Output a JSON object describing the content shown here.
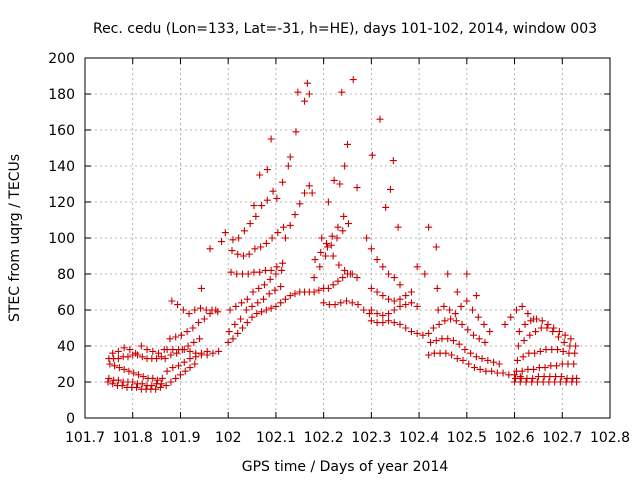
{
  "chart_data": {
    "type": "scatter",
    "title": "Rec. cedu (Lon=133, Lat=-31, h=HE), days 101-102, 2014, window 003",
    "xlabel": "GPS time / Days of year 2014",
    "ylabel": "STEC from uqrg / TECUs",
    "xlim": [
      101.7,
      102.8
    ],
    "ylim": [
      0,
      200
    ],
    "xticks": [
      101.7,
      101.8,
      101.9,
      102.0,
      102.1,
      102.2,
      102.3,
      102.4,
      102.5,
      102.6,
      102.7,
      102.8
    ],
    "xtick_labels": [
      "101.7",
      "101.8",
      "101.9",
      "102",
      "102.1",
      "102.2",
      "102.3",
      "102.4",
      "102.5",
      "102.6",
      "102.7",
      "102.8"
    ],
    "yticks": [
      0,
      20,
      40,
      60,
      80,
      100,
      120,
      140,
      160,
      180,
      200
    ],
    "ytick_labels": [
      "0",
      "20",
      "40",
      "60",
      "80",
      "100",
      "120",
      "140",
      "160",
      "180",
      "200"
    ],
    "grid": true,
    "legend": "none",
    "marker": "plus",
    "color": "#cc0000",
    "points": [
      [
        101.748,
        20
      ],
      [
        101.758,
        19
      ],
      [
        101.768,
        18
      ],
      [
        101.778,
        18
      ],
      [
        101.788,
        17
      ],
      [
        101.798,
        17
      ],
      [
        101.808,
        17
      ],
      [
        101.818,
        16
      ],
      [
        101.828,
        16
      ],
      [
        101.838,
        16
      ],
      [
        101.848,
        16
      ],
      [
        101.858,
        17
      ],
      [
        101.75,
        22
      ],
      [
        101.76,
        21
      ],
      [
        101.77,
        21
      ],
      [
        101.78,
        20
      ],
      [
        101.79,
        20
      ],
      [
        101.8,
        20
      ],
      [
        101.81,
        19
      ],
      [
        101.82,
        19
      ],
      [
        101.83,
        18
      ],
      [
        101.84,
        18
      ],
      [
        101.85,
        19
      ],
      [
        101.86,
        19
      ],
      [
        101.752,
        30
      ],
      [
        101.762,
        29
      ],
      [
        101.772,
        28
      ],
      [
        101.782,
        27
      ],
      [
        101.792,
        26
      ],
      [
        101.802,
        25
      ],
      [
        101.812,
        24
      ],
      [
        101.822,
        23
      ],
      [
        101.832,
        22
      ],
      [
        101.842,
        22
      ],
      [
        101.852,
        21
      ],
      [
        101.862,
        22
      ],
      [
        101.75,
        33
      ],
      [
        101.76,
        33
      ],
      [
        101.77,
        33
      ],
      [
        101.78,
        34
      ],
      [
        101.79,
        34
      ],
      [
        101.8,
        35
      ],
      [
        101.81,
        35
      ],
      [
        101.82,
        34
      ],
      [
        101.83,
        33
      ],
      [
        101.84,
        33
      ],
      [
        101.85,
        33
      ],
      [
        101.86,
        34
      ],
      [
        101.758,
        36
      ],
      [
        101.77,
        37
      ],
      [
        101.782,
        39
      ],
      [
        101.794,
        38
      ],
      [
        101.806,
        36
      ],
      [
        101.818,
        40
      ],
      [
        101.83,
        38
      ],
      [
        101.842,
        37
      ],
      [
        101.854,
        36
      ],
      [
        101.866,
        38
      ],
      [
        101.87,
        18
      ],
      [
        101.88,
        20
      ],
      [
        101.89,
        22
      ],
      [
        101.9,
        24
      ],
      [
        101.91,
        26
      ],
      [
        101.92,
        28
      ],
      [
        101.93,
        30
      ],
      [
        101.872,
        26
      ],
      [
        101.884,
        28
      ],
      [
        101.896,
        29
      ],
      [
        101.908,
        31
      ],
      [
        101.92,
        33
      ],
      [
        101.932,
        34
      ],
      [
        101.944,
        36
      ],
      [
        101.956,
        37
      ],
      [
        101.868,
        33
      ],
      [
        101.88,
        35
      ],
      [
        101.892,
        36
      ],
      [
        101.904,
        38
      ],
      [
        101.916,
        40
      ],
      [
        101.928,
        42
      ],
      [
        101.94,
        44
      ],
      [
        101.872,
        38
      ],
      [
        101.884,
        38
      ],
      [
        101.896,
        38
      ],
      [
        101.908,
        38
      ],
      [
        101.92,
        37
      ],
      [
        101.932,
        36
      ],
      [
        101.944,
        35
      ],
      [
        101.956,
        35
      ],
      [
        101.968,
        36
      ],
      [
        101.98,
        37
      ],
      [
        101.878,
        44
      ],
      [
        101.89,
        45
      ],
      [
        101.902,
        46
      ],
      [
        101.914,
        48
      ],
      [
        101.926,
        50
      ],
      [
        101.938,
        53
      ],
      [
        101.95,
        55
      ],
      [
        101.962,
        58
      ],
      [
        101.974,
        60
      ],
      [
        101.882,
        65
      ],
      [
        101.894,
        63
      ],
      [
        101.906,
        60
      ],
      [
        101.918,
        58
      ],
      [
        101.93,
        60
      ],
      [
        101.942,
        61
      ],
      [
        101.954,
        60
      ],
      [
        101.966,
        60
      ],
      [
        101.978,
        59
      ],
      [
        101.944,
        72
      ],
      [
        101.962,
        94
      ],
      [
        101.986,
        98
      ],
      [
        101.994,
        103
      ],
      [
        102.0,
        42
      ],
      [
        102.01,
        44
      ],
      [
        102.02,
        47
      ],
      [
        102.03,
        50
      ],
      [
        102.04,
        53
      ],
      [
        102.05,
        56
      ],
      [
        102.06,
        58
      ],
      [
        102.07,
        59
      ],
      [
        102.08,
        60
      ],
      [
        102.09,
        61
      ],
      [
        102.1,
        62
      ],
      [
        102.11,
        64
      ],
      [
        102.12,
        66
      ],
      [
        102.13,
        68
      ],
      [
        102.14,
        69
      ],
      [
        102.15,
        70
      ],
      [
        102.16,
        70
      ],
      [
        102.17,
        70
      ],
      [
        102.002,
        48
      ],
      [
        102.014,
        52
      ],
      [
        102.026,
        55
      ],
      [
        102.038,
        60
      ],
      [
        102.05,
        62
      ],
      [
        102.062,
        64
      ],
      [
        102.074,
        66
      ],
      [
        102.086,
        69
      ],
      [
        102.098,
        71
      ],
      [
        102.11,
        73
      ],
      [
        102.004,
        60
      ],
      [
        102.016,
        62
      ],
      [
        102.028,
        64
      ],
      [
        102.04,
        66
      ],
      [
        102.052,
        70
      ],
      [
        102.064,
        72
      ],
      [
        102.076,
        74
      ],
      [
        102.088,
        77
      ],
      [
        102.1,
        80
      ],
      [
        102.112,
        82
      ],
      [
        102.006,
        81
      ],
      [
        102.018,
        80
      ],
      [
        102.03,
        80
      ],
      [
        102.042,
        80
      ],
      [
        102.054,
        81
      ],
      [
        102.066,
        81
      ],
      [
        102.078,
        82
      ],
      [
        102.09,
        82
      ],
      [
        102.102,
        84
      ],
      [
        102.114,
        86
      ],
      [
        102.008,
        93
      ],
      [
        102.02,
        91
      ],
      [
        102.032,
        90
      ],
      [
        102.044,
        91
      ],
      [
        102.056,
        94
      ],
      [
        102.068,
        95
      ],
      [
        102.08,
        97
      ],
      [
        102.092,
        100
      ],
      [
        102.104,
        103
      ],
      [
        102.116,
        106
      ],
      [
        102.01,
        99
      ],
      [
        102.022,
        100
      ],
      [
        102.034,
        104
      ],
      [
        102.046,
        108
      ],
      [
        102.058,
        112
      ],
      [
        102.07,
        118
      ],
      [
        102.082,
        121
      ],
      [
        102.094,
        126
      ],
      [
        102.054,
        118
      ],
      [
        102.066,
        135
      ],
      [
        102.082,
        138
      ],
      [
        102.09,
        155
      ],
      [
        102.102,
        122
      ],
      [
        102.114,
        131
      ],
      [
        102.126,
        140
      ],
      [
        102.13,
        145
      ],
      [
        102.142,
        159
      ],
      [
        102.146,
        181
      ],
      [
        102.16,
        176
      ],
      [
        102.166,
        186
      ],
      [
        102.17,
        180
      ],
      [
        102.12,
        100
      ],
      [
        102.13,
        107
      ],
      [
        102.14,
        113
      ],
      [
        102.15,
        119
      ],
      [
        102.16,
        125
      ],
      [
        102.17,
        129
      ],
      [
        102.176,
        125
      ],
      [
        102.18,
        70
      ],
      [
        102.19,
        71
      ],
      [
        102.2,
        72
      ],
      [
        102.21,
        72
      ],
      [
        102.22,
        74
      ],
      [
        102.23,
        76
      ],
      [
        102.24,
        78
      ],
      [
        102.25,
        80
      ],
      [
        102.26,
        80
      ],
      [
        102.27,
        78
      ],
      [
        102.18,
        78
      ],
      [
        102.192,
        84
      ],
      [
        102.204,
        90
      ],
      [
        102.216,
        96
      ],
      [
        102.228,
        100
      ],
      [
        102.24,
        104
      ],
      [
        102.252,
        108
      ],
      [
        102.182,
        88
      ],
      [
        102.194,
        92
      ],
      [
        102.206,
        97
      ],
      [
        102.218,
        101
      ],
      [
        102.23,
        106
      ],
      [
        102.242,
        112
      ],
      [
        102.196,
        100
      ],
      [
        102.208,
        95
      ],
      [
        102.22,
        90
      ],
      [
        102.232,
        85
      ],
      [
        102.244,
        82
      ],
      [
        102.256,
        80
      ],
      [
        102.2,
        64
      ],
      [
        102.212,
        63
      ],
      [
        102.224,
        63
      ],
      [
        102.236,
        64
      ],
      [
        102.248,
        65
      ],
      [
        102.26,
        64
      ],
      [
        102.272,
        63
      ],
      [
        102.284,
        60
      ],
      [
        102.296,
        58
      ],
      [
        102.21,
        120
      ],
      [
        102.222,
        132
      ],
      [
        102.234,
        130
      ],
      [
        102.244,
        140
      ],
      [
        102.238,
        181
      ],
      [
        102.25,
        152
      ],
      [
        102.262,
        188
      ],
      [
        102.27,
        128
      ],
      [
        102.3,
        54
      ],
      [
        102.312,
        53
      ],
      [
        102.324,
        53
      ],
      [
        102.336,
        54
      ],
      [
        102.348,
        53
      ],
      [
        102.36,
        52
      ],
      [
        102.372,
        50
      ],
      [
        102.384,
        48
      ],
      [
        102.396,
        47
      ],
      [
        102.408,
        46
      ],
      [
        102.42,
        47
      ],
      [
        102.3,
        60
      ],
      [
        102.312,
        58
      ],
      [
        102.324,
        57
      ],
      [
        102.336,
        58
      ],
      [
        102.348,
        60
      ],
      [
        102.36,
        62
      ],
      [
        102.372,
        63
      ],
      [
        102.384,
        64
      ],
      [
        102.396,
        62
      ],
      [
        102.3,
        72
      ],
      [
        102.312,
        70
      ],
      [
        102.324,
        68
      ],
      [
        102.336,
        66
      ],
      [
        102.348,
        65
      ],
      [
        102.36,
        66
      ],
      [
        102.372,
        68
      ],
      [
        102.384,
        70
      ],
      [
        102.29,
        100
      ],
      [
        102.3,
        94
      ],
      [
        102.312,
        88
      ],
      [
        102.324,
        84
      ],
      [
        102.336,
        80
      ],
      [
        102.348,
        78
      ],
      [
        102.36,
        74
      ],
      [
        102.302,
        146
      ],
      [
        102.318,
        166
      ],
      [
        102.33,
        117
      ],
      [
        102.34,
        127
      ],
      [
        102.346,
        143
      ],
      [
        102.356,
        106
      ],
      [
        102.396,
        84
      ],
      [
        102.412,
        80
      ],
      [
        102.42,
        106
      ],
      [
        102.436,
        95
      ],
      [
        102.438,
        72
      ],
      [
        102.42,
        35
      ],
      [
        102.432,
        36
      ],
      [
        102.444,
        36
      ],
      [
        102.456,
        36
      ],
      [
        102.468,
        35
      ],
      [
        102.48,
        33
      ],
      [
        102.492,
        32
      ],
      [
        102.504,
        30
      ],
      [
        102.516,
        28
      ],
      [
        102.528,
        27
      ],
      [
        102.54,
        26
      ],
      [
        102.552,
        26
      ],
      [
        102.564,
        25
      ],
      [
        102.576,
        25
      ],
      [
        102.588,
        24
      ],
      [
        102.6,
        24
      ],
      [
        102.612,
        23
      ],
      [
        102.424,
        42
      ],
      [
        102.436,
        43
      ],
      [
        102.448,
        44
      ],
      [
        102.46,
        44
      ],
      [
        102.472,
        43
      ],
      [
        102.484,
        41
      ],
      [
        102.496,
        38
      ],
      [
        102.508,
        36
      ],
      [
        102.52,
        34
      ],
      [
        102.532,
        33
      ],
      [
        102.544,
        32
      ],
      [
        102.556,
        31
      ],
      [
        102.568,
        30
      ],
      [
        102.43,
        50
      ],
      [
        102.442,
        52
      ],
      [
        102.454,
        54
      ],
      [
        102.466,
        55
      ],
      [
        102.478,
        54
      ],
      [
        102.49,
        52
      ],
      [
        102.502,
        49
      ],
      [
        102.514,
        46
      ],
      [
        102.526,
        44
      ],
      [
        102.538,
        42
      ],
      [
        102.44,
        60
      ],
      [
        102.452,
        62
      ],
      [
        102.464,
        60
      ],
      [
        102.476,
        58
      ],
      [
        102.488,
        62
      ],
      [
        102.5,
        65
      ],
      [
        102.512,
        60
      ],
      [
        102.524,
        56
      ],
      [
        102.536,
        52
      ],
      [
        102.548,
        48
      ],
      [
        102.46,
        80
      ],
      [
        102.48,
        70
      ],
      [
        102.5,
        80
      ],
      [
        102.52,
        68
      ],
      [
        102.6,
        20
      ],
      [
        102.612,
        20
      ],
      [
        102.624,
        20
      ],
      [
        102.636,
        20
      ],
      [
        102.648,
        20
      ],
      [
        102.66,
        20
      ],
      [
        102.672,
        20
      ],
      [
        102.684,
        20
      ],
      [
        102.696,
        20
      ],
      [
        102.708,
        20
      ],
      [
        102.72,
        20
      ],
      [
        102.73,
        20
      ],
      [
        102.602,
        22
      ],
      [
        102.614,
        22
      ],
      [
        102.626,
        22
      ],
      [
        102.638,
        22
      ],
      [
        102.65,
        23
      ],
      [
        102.662,
        23
      ],
      [
        102.674,
        23
      ],
      [
        102.686,
        23
      ],
      [
        102.698,
        23
      ],
      [
        102.71,
        22
      ],
      [
        102.722,
        22
      ],
      [
        102.73,
        22
      ],
      [
        102.604,
        26
      ],
      [
        102.616,
        26
      ],
      [
        102.628,
        27
      ],
      [
        102.64,
        27
      ],
      [
        102.652,
        28
      ],
      [
        102.664,
        28
      ],
      [
        102.676,
        29
      ],
      [
        102.688,
        29
      ],
      [
        102.7,
        30
      ],
      [
        102.712,
        30
      ],
      [
        102.724,
        30
      ],
      [
        102.606,
        32
      ],
      [
        102.618,
        34
      ],
      [
        102.63,
        36
      ],
      [
        102.642,
        36
      ],
      [
        102.654,
        37
      ],
      [
        102.666,
        38
      ],
      [
        102.678,
        38
      ],
      [
        102.69,
        38
      ],
      [
        102.702,
        37
      ],
      [
        102.714,
        36
      ],
      [
        102.726,
        36
      ],
      [
        102.608,
        40
      ],
      [
        102.62,
        43
      ],
      [
        102.632,
        46
      ],
      [
        102.644,
        48
      ],
      [
        102.656,
        50
      ],
      [
        102.668,
        50
      ],
      [
        102.68,
        48
      ],
      [
        102.692,
        45
      ],
      [
        102.704,
        42
      ],
      [
        102.716,
        40
      ],
      [
        102.728,
        40
      ],
      [
        102.61,
        48
      ],
      [
        102.622,
        52
      ],
      [
        102.634,
        54
      ],
      [
        102.646,
        55
      ],
      [
        102.658,
        54
      ],
      [
        102.67,
        52
      ],
      [
        102.682,
        50
      ],
      [
        102.694,
        48
      ],
      [
        102.706,
        46
      ],
      [
        102.718,
        44
      ],
      [
        102.58,
        52
      ],
      [
        102.592,
        56
      ],
      [
        102.604,
        60
      ],
      [
        102.616,
        62
      ],
      [
        102.628,
        58
      ],
      [
        102.64,
        55
      ]
    ]
  }
}
